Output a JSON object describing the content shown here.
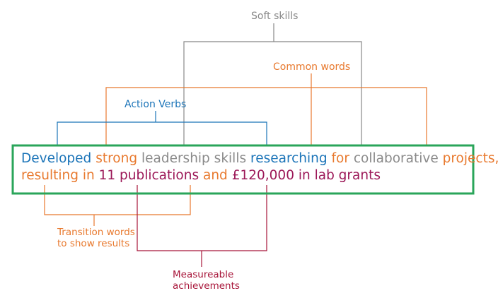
{
  "colors": {
    "soft_skills": "#888888",
    "common_words": "#e8792e",
    "action_verbs": "#1b74b8",
    "transition_words": "#e8792e",
    "measureable": "#a8163a",
    "highlight_box": "#2aa55a",
    "sentence_maroon": "#9c1858"
  },
  "labels": {
    "soft_skills": "Soft skills",
    "common_words": "Common words",
    "action_verbs": "Action Verbs",
    "transition_words_line1": "Transition words",
    "transition_words_line2": "to show results",
    "measureable_line1": "Measureable",
    "measureable_line2": "achievements"
  },
  "sentence": {
    "line1": [
      "Developed",
      "strong",
      "leadership skills",
      "researching",
      "for",
      "collaborative",
      "projects,"
    ],
    "line2": [
      "resulting in",
      "11 publications",
      "and",
      "£120,000 in lab grants"
    ]
  }
}
